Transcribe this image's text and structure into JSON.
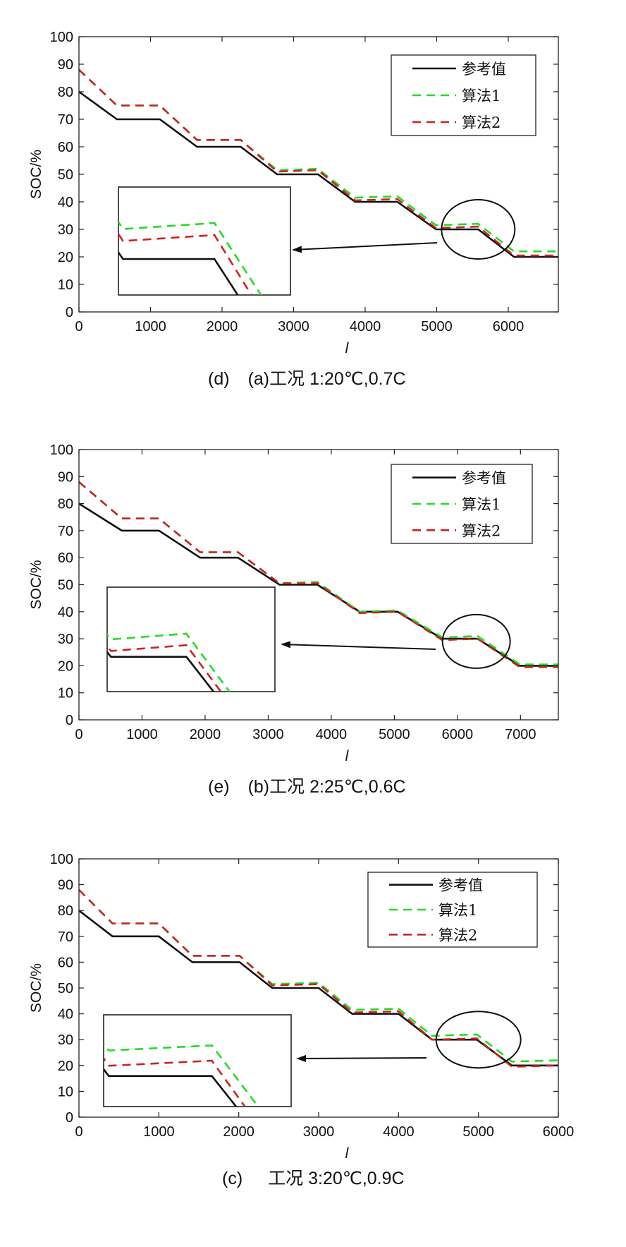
{
  "legend": [
    "参考值",
    "算法1",
    "算法2"
  ],
  "colors": {
    "ref": "#111111",
    "alg1": "#22dd22",
    "alg2": "#cc2222"
  },
  "chart_data": [
    {
      "type": "line",
      "caption_tag": "(d)",
      "caption": "(a)工况 1:20℃,0.7C",
      "xlabel": "l",
      "ylabel": "SOC/%",
      "xlim": [
        0,
        6700
      ],
      "ylim": [
        0,
        100
      ],
      "xticks": [
        0,
        1000,
        2000,
        3000,
        4000,
        5000,
        6000
      ],
      "yticks": [
        0,
        10,
        20,
        30,
        40,
        50,
        60,
        70,
        80,
        90,
        100
      ],
      "legend_position": "top-right",
      "series": [
        {
          "name": "参考值",
          "x": [
            0,
            530,
            1130,
            1650,
            2260,
            2770,
            3340,
            3860,
            4450,
            4990,
            5580,
            6080,
            6700
          ],
          "y": [
            80,
            70,
            70,
            60,
            60,
            50,
            50,
            40,
            40,
            30,
            30,
            20,
            20
          ]
        },
        {
          "name": "算法1",
          "x": [
            0,
            530,
            1130,
            1650,
            2260,
            2770,
            3340,
            3860,
            4450,
            4990,
            5580,
            6080,
            6700
          ],
          "y": [
            88,
            75,
            75,
            62.5,
            62.5,
            51.5,
            52,
            41.5,
            42,
            31.5,
            32,
            22,
            22
          ]
        },
        {
          "name": "算法2",
          "x": [
            0,
            530,
            1130,
            1650,
            2260,
            2770,
            3340,
            3860,
            4450,
            4990,
            5580,
            6080,
            6700
          ],
          "y": [
            88,
            75,
            75,
            62.5,
            62.5,
            51,
            51.5,
            40.5,
            41,
            30.5,
            31,
            20.5,
            20.5
          ]
        }
      ],
      "annotation": {
        "ellipse_center": [
          5580,
          30
        ],
        "inset_x_range": [
          0,
          2950
        ],
        "inset_y_range": [
          5,
          45
        ]
      }
    },
    {
      "type": "line",
      "caption_tag": "(e)",
      "caption": "(b)工况 2:25℃,0.6C",
      "xlabel": "l",
      "ylabel": "SOC/%",
      "xlim": [
        0,
        7600
      ],
      "ylim": [
        0,
        100
      ],
      "xticks": [
        0,
        1000,
        2000,
        3000,
        4000,
        5000,
        6000,
        7000
      ],
      "yticks": [
        0,
        10,
        20,
        30,
        40,
        50,
        60,
        70,
        80,
        90,
        100
      ],
      "legend_position": "top-right",
      "series": [
        {
          "name": "参考值",
          "x": [
            0,
            680,
            1270,
            1920,
            2520,
            3180,
            3780,
            4450,
            5050,
            5760,
            6320,
            6990,
            7600
          ],
          "y": [
            80,
            70,
            70,
            60,
            60,
            50,
            50,
            40,
            40,
            30,
            30,
            20,
            20
          ]
        },
        {
          "name": "算法1",
          "x": [
            0,
            680,
            1270,
            1920,
            2520,
            3180,
            3780,
            4450,
            5050,
            5760,
            6320,
            6990,
            7600
          ],
          "y": [
            88,
            74.5,
            74.5,
            62,
            62,
            50.5,
            51,
            40,
            40.5,
            30.5,
            31,
            20.5,
            20.5
          ]
        },
        {
          "name": "算法2",
          "x": [
            0,
            680,
            1270,
            1920,
            2520,
            3180,
            3780,
            4450,
            5050,
            5760,
            6320,
            6990,
            7600
          ],
          "y": [
            88,
            74.5,
            74.5,
            62,
            62,
            50.5,
            50.5,
            39.5,
            40,
            29.5,
            30,
            19.5,
            19.5
          ]
        }
      ],
      "annotation": {
        "ellipse_center": [
          6300,
          29
        ],
        "inset_x_range": [
          480,
          3100
        ],
        "inset_y_range": [
          10,
          49
        ]
      }
    },
    {
      "type": "line",
      "caption_tag": "(c)",
      "caption": "工况 3:20℃,0.9C",
      "xlabel": "l",
      "ylabel": "SOC/%",
      "xlim": [
        0,
        6000
      ],
      "ylim": [
        0,
        100
      ],
      "xticks": [
        0,
        1000,
        2000,
        3000,
        4000,
        5000,
        6000
      ],
      "yticks": [
        0,
        10,
        20,
        30,
        40,
        50,
        60,
        70,
        80,
        90,
        100
      ],
      "legend_position": "top-right",
      "series": [
        {
          "name": "参考值",
          "x": [
            0,
            420,
            1000,
            1420,
            2010,
            2420,
            3000,
            3420,
            4000,
            4420,
            4980,
            5420,
            6000
          ],
          "y": [
            80,
            70,
            70,
            60,
            60,
            50,
            50,
            40,
            40,
            30,
            30,
            20,
            20
          ]
        },
        {
          "name": "算法1",
          "x": [
            0,
            420,
            1000,
            1420,
            2010,
            2420,
            3000,
            3420,
            4000,
            4420,
            4980,
            5420,
            6000
          ],
          "y": [
            88,
            75,
            75,
            62.5,
            62.5,
            51.5,
            52,
            41.5,
            42,
            31.5,
            32,
            21.5,
            22
          ]
        },
        {
          "name": "算法2",
          "x": [
            0,
            420,
            1000,
            1420,
            2010,
            2420,
            3000,
            3420,
            4000,
            4420,
            4980,
            5420,
            6000
          ],
          "y": [
            88,
            75,
            75,
            62.5,
            62.5,
            51,
            51.5,
            40.5,
            41,
            30,
            30.5,
            19.5,
            20
          ]
        }
      ],
      "annotation": {
        "ellipse_center": [
          5000,
          30
        ],
        "inset_x_range": [
          300,
          2680
        ],
        "inset_y_range": [
          8,
          47
        ]
      }
    }
  ]
}
